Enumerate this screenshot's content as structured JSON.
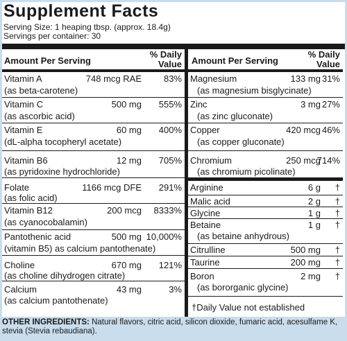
{
  "title": "Supplement Facts",
  "serving_size": "Serving Size: 1 heaping tbsp. (approx. 18.4g)",
  "servings_per_container": "Servings per container: 30",
  "header": {
    "amount_label": "Amount Per Serving",
    "dv_line1": "% Daily",
    "dv_line2": "Value"
  },
  "left_rows": [
    {
      "name": "Vitamin A",
      "amount": "748 mcg RAE",
      "dv": "83%",
      "sub": "(as beta-carotene)"
    },
    {
      "name": "Vitamin C",
      "amount": "500 mg",
      "dv": "555%",
      "sub": "(as ascorbic acid)"
    },
    {
      "name": "Vitamin E",
      "amount": "60 mg",
      "dv": "400%",
      "sub": "(dL-alpha tocopheryl acetate)"
    },
    {
      "name": "Vitamin B6",
      "amount": "12 mg",
      "dv": "705%",
      "sub": "(as pyridoxine hydrochloride)"
    },
    {
      "name": "Folate",
      "amount": "1166 mcg DFE",
      "dv": "291%",
      "sub": "(as folic acid)"
    },
    {
      "name": "Vitamin B12",
      "amount": "200 mcg",
      "dv": "8333%",
      "sub": "(as cyanocobalamin)"
    },
    {
      "name": "Pantothenic acid",
      "amount": "500 mg",
      "dv": "10,000%",
      "sub": "(vitamin B5) as calcium pantothenate)"
    },
    {
      "name": "Choline",
      "amount": "670 mg",
      "dv": "121%",
      "sub": "(as choline dihydrogen citrate)"
    },
    {
      "name": "Calcium",
      "amount": "43 mg",
      "dv": "3%",
      "sub": "(as calcium pantothenate)"
    }
  ],
  "right_rows": [
    {
      "name": "Magnesium",
      "amount": "133 mg",
      "dv": "31%",
      "sub": "(as magnesium bisglycinate)"
    },
    {
      "name": "Zinc",
      "amount": "3 mg",
      "dv": "27%",
      "sub": "(as zinc gluconate)"
    },
    {
      "name": "Copper",
      "amount": "420 mcg",
      "dv": "46%",
      "sub": "(as copper gluconate)"
    },
    {
      "name": "Chromium",
      "amount": "250 mcg",
      "dv": "714%",
      "sub": "(as chromium picolinate)"
    }
  ],
  "right_rows_b": [
    {
      "name": "Arginine",
      "amount": "6 g",
      "dv": "†"
    },
    {
      "name": "Malic acid",
      "amount": "2 g",
      "dv": "†"
    },
    {
      "name": "Glycine",
      "amount": "1 g",
      "dv": "†"
    },
    {
      "name": "Betaine",
      "amount": "1 g",
      "dv": "†",
      "sub": "(as betaine anhydrous)"
    },
    {
      "name": "Citrulline",
      "amount": "500 mg",
      "dv": "†"
    },
    {
      "name": "Taurine",
      "amount": "200 mg",
      "dv": "†"
    },
    {
      "name": "Boron",
      "amount": "2 mg",
      "dv": "†",
      "sub": "(as bororganic glycine)"
    }
  ],
  "footnote": "†Daily Value not established",
  "other_ingredients": {
    "label": "OTHER INGREDIENTS:",
    "text": " Natural flavors, citric acid, silicon dioxide, fumaric acid, acesulfame K, stevia (Stevia rebaudiana)."
  }
}
